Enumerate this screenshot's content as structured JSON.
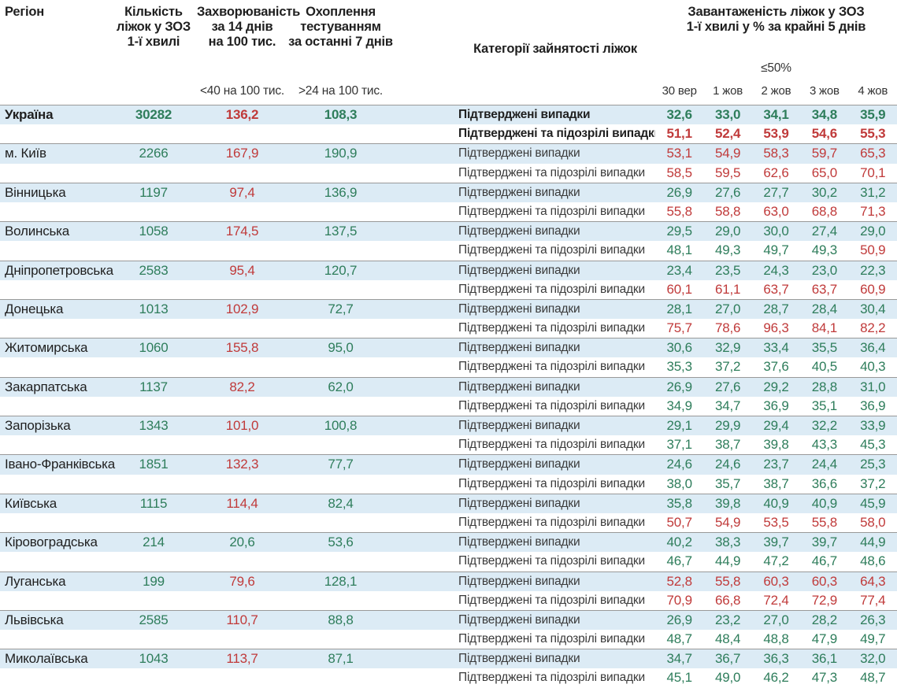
{
  "colors": {
    "green": "#2e7d5b",
    "red": "#c03a3a",
    "row_highlight": "#dcebf5",
    "separator": "#999999"
  },
  "chart_data": {
    "type": "table",
    "headers": {
      "region": "Регіон",
      "beds": "Кількість\nліжок у ЗОЗ\n1-ї хвилі",
      "incidence": "Захворюваність\nза 14 днів\nна 100 тис.",
      "testing": "Охоплення\nтестуванням\nза останні 7 днів",
      "categories": "Категорії зайнятості ліжок",
      "load": "Завантаженість ліжок у ЗОЗ\n1-ї хвилі у % за крайні 5 днів"
    },
    "thresholds": {
      "incidence_label": "<40 на 100 тис.",
      "testing_label": ">24 на 100 тис.",
      "load_label": "≤50%",
      "incidence": 40,
      "testing": 24,
      "load": 50
    },
    "dates": [
      "30 вер",
      "1 жов",
      "2 жов",
      "3 жов",
      "4 жов"
    ],
    "row_labels": {
      "confirmed": "Підтверджені випадки",
      "suspected": "Підтверджені та підозрілі випадки"
    },
    "regions": [
      {
        "name": "Україна",
        "bold": true,
        "beds": "30282",
        "incidence": "136,2",
        "testing": "108,3",
        "confirmed": [
          "32,6",
          "33,0",
          "34,1",
          "34,8",
          "35,9"
        ],
        "suspected": [
          "51,1",
          "52,4",
          "53,9",
          "54,6",
          "55,3"
        ]
      },
      {
        "name": "м. Київ",
        "bold": false,
        "beds": "2266",
        "incidence": "167,9",
        "testing": "190,9",
        "confirmed": [
          "53,1",
          "54,9",
          "58,3",
          "59,7",
          "65,3"
        ],
        "suspected": [
          "58,5",
          "59,5",
          "62,6",
          "65,0",
          "70,1"
        ]
      },
      {
        "name": "Вінницька",
        "bold": false,
        "beds": "1197",
        "incidence": "97,4",
        "testing": "136,9",
        "confirmed": [
          "26,9",
          "27,6",
          "27,7",
          "30,2",
          "31,2"
        ],
        "suspected": [
          "55,8",
          "58,8",
          "63,0",
          "68,8",
          "71,3"
        ]
      },
      {
        "name": "Волинська",
        "bold": false,
        "beds": "1058",
        "incidence": "174,5",
        "testing": "137,5",
        "confirmed": [
          "29,5",
          "29,0",
          "30,0",
          "27,4",
          "29,0"
        ],
        "suspected": [
          "48,1",
          "49,3",
          "49,7",
          "49,3",
          "50,9"
        ]
      },
      {
        "name": "Дніпропетровська",
        "bold": false,
        "beds": "2583",
        "incidence": "95,4",
        "testing": "120,7",
        "confirmed": [
          "23,4",
          "23,5",
          "24,3",
          "23,0",
          "22,3"
        ],
        "suspected": [
          "60,1",
          "61,1",
          "63,7",
          "63,7",
          "60,9"
        ]
      },
      {
        "name": "Донецька",
        "bold": false,
        "beds": "1013",
        "incidence": "102,9",
        "testing": "72,7",
        "confirmed": [
          "28,1",
          "27,0",
          "28,7",
          "28,4",
          "30,4"
        ],
        "suspected": [
          "75,7",
          "78,6",
          "96,3",
          "84,1",
          "82,2"
        ]
      },
      {
        "name": "Житомирська",
        "bold": false,
        "beds": "1060",
        "incidence": "155,8",
        "testing": "95,0",
        "confirmed": [
          "30,6",
          "32,9",
          "33,4",
          "35,5",
          "36,4"
        ],
        "suspected": [
          "35,3",
          "37,2",
          "37,6",
          "40,5",
          "40,3"
        ]
      },
      {
        "name": "Закарпатська",
        "bold": false,
        "beds": "1137",
        "incidence": "82,2",
        "testing": "62,0",
        "confirmed": [
          "26,9",
          "27,6",
          "29,2",
          "28,8",
          "31,0"
        ],
        "suspected": [
          "34,9",
          "34,7",
          "36,9",
          "35,1",
          "36,9"
        ]
      },
      {
        "name": "Запорізька",
        "bold": false,
        "beds": "1343",
        "incidence": "101,0",
        "testing": "100,8",
        "confirmed": [
          "29,1",
          "29,9",
          "29,4",
          "32,2",
          "33,9"
        ],
        "suspected": [
          "37,1",
          "38,7",
          "39,8",
          "43,3",
          "45,3"
        ]
      },
      {
        "name": "Івано-Франківська",
        "bold": false,
        "beds": "1851",
        "incidence": "132,3",
        "testing": "77,7",
        "confirmed": [
          "24,6",
          "24,6",
          "23,7",
          "24,4",
          "25,3"
        ],
        "suspected": [
          "38,0",
          "35,7",
          "38,7",
          "36,6",
          "37,2"
        ]
      },
      {
        "name": "Київська",
        "bold": false,
        "beds": "1115",
        "incidence": "114,4",
        "testing": "82,4",
        "confirmed": [
          "35,8",
          "39,8",
          "40,9",
          "40,9",
          "45,9"
        ],
        "suspected": [
          "50,7",
          "54,9",
          "53,5",
          "55,8",
          "58,0"
        ]
      },
      {
        "name": "Кіровоградська",
        "bold": false,
        "beds": "214",
        "incidence": "20,6",
        "testing": "53,6",
        "confirmed": [
          "40,2",
          "38,3",
          "39,7",
          "39,7",
          "44,9"
        ],
        "suspected": [
          "46,7",
          "44,9",
          "47,2",
          "46,7",
          "48,6"
        ]
      },
      {
        "name": "Луганська",
        "bold": false,
        "beds": "199",
        "incidence": "79,6",
        "testing": "128,1",
        "confirmed": [
          "52,8",
          "55,8",
          "60,3",
          "60,3",
          "64,3"
        ],
        "suspected": [
          "70,9",
          "66,8",
          "72,4",
          "72,9",
          "77,4"
        ]
      },
      {
        "name": "Львівська",
        "bold": false,
        "beds": "2585",
        "incidence": "110,7",
        "testing": "88,8",
        "confirmed": [
          "26,9",
          "23,2",
          "27,0",
          "28,2",
          "26,3"
        ],
        "suspected": [
          "48,7",
          "48,4",
          "48,8",
          "47,9",
          "49,7"
        ]
      },
      {
        "name": "Миколаївська",
        "bold": false,
        "beds": "1043",
        "incidence": "113,7",
        "testing": "87,1",
        "confirmed": [
          "34,7",
          "36,7",
          "36,3",
          "36,1",
          "32,0"
        ],
        "suspected": [
          "45,1",
          "49,0",
          "46,2",
          "47,3",
          "48,7"
        ]
      }
    ]
  }
}
